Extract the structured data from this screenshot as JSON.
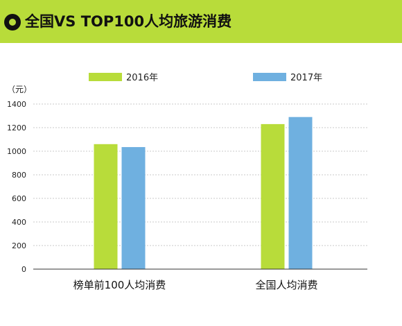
{
  "header": {
    "title": "全国VS TOP100人均旅游消费",
    "icon": "ring-bullet-icon"
  },
  "chart_data": {
    "type": "bar",
    "title": "全国VS TOP100人均旅游消费",
    "ylabel": "（元）",
    "xlabel": "",
    "categories": [
      "榜单前100人均消费",
      "全国人均消费"
    ],
    "series": [
      {
        "name": "2016年",
        "color": "#b8dc3a",
        "values": [
          1060,
          1230
        ]
      },
      {
        "name": "2017年",
        "color": "#6fb0e0",
        "values": [
          1035,
          1290
        ]
      }
    ],
    "ylim": [
      0,
      1400
    ],
    "yticks": [
      "0",
      "200",
      "400",
      "600",
      "800",
      "1000",
      "1200",
      "1400"
    ],
    "grid": true,
    "legend_position": "top"
  }
}
